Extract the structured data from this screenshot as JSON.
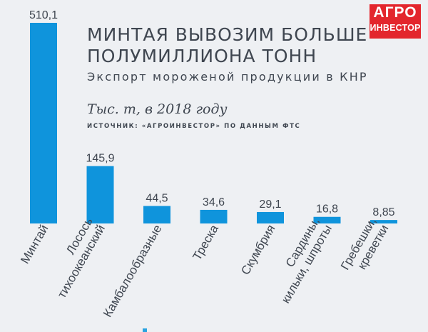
{
  "header": {
    "title_line1": "МИНТАЯ ВЫВОЗИМ БОЛЬШЕ",
    "title_line2": "ПОЛУМИЛЛИОНА ТОНН",
    "subtitle": "Экспорт мороженой продукции в КНР",
    "unit": "Тыс. т, в 2018 году",
    "source": "ИСТОЧНИК: «АГРОИНВЕСТОР» ПО ДАННЫМ ФТС"
  },
  "logo": {
    "line1": "АГРО",
    "line2": "ИНВЕСТОР"
  },
  "colors": {
    "bar": "#0f94dc",
    "background": "#eef0f3",
    "text": "#3f4650",
    "logo": "#e3262d"
  },
  "chart_data": {
    "type": "bar",
    "categories": [
      [
        "Минтай"
      ],
      [
        "Лосось",
        "тихоокеанский"
      ],
      [
        "Камбалообразные"
      ],
      [
        "Треска"
      ],
      [
        "Скумбрия"
      ],
      [
        "Сардины,",
        "кильки, шпроты"
      ],
      [
        "Гребешки,",
        "креветки"
      ]
    ],
    "values": [
      510.1,
      145.9,
      44.5,
      34.6,
      29.1,
      16.8,
      8.85
    ],
    "value_labels": [
      "510,1",
      "145,9",
      "44,5",
      "34,6",
      "29,1",
      "16,8",
      "8,85"
    ],
    "title": "МИНТАЯ ВЫВОЗИМ БОЛЬШЕ ПОЛУМИЛЛИОНА ТОНН",
    "subtitle": "Экспорт мороженой продукции в КНР",
    "ylabel": "Тыс. т, в 2018 году",
    "ylim": [
      0,
      510.1
    ],
    "grid": false,
    "legend": "none"
  }
}
